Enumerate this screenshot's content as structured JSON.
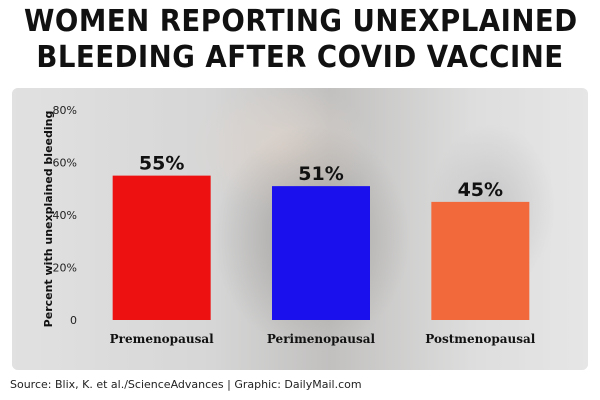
{
  "title": {
    "line1": "WOMEN REPORTING UNEXPLAINED",
    "line2": "BLEEDING AFTER COVID VACCINE"
  },
  "source": "Source: Blix, K. et al./ScienceAdvances  |  Graphic: DailyMail.com",
  "chart_data": {
    "type": "bar",
    "categories": [
      "Premenopausal",
      "Perimenopausal",
      "Postmenopausal"
    ],
    "values": [
      55,
      51,
      45
    ],
    "value_labels": [
      "55%",
      "51%",
      "45%"
    ],
    "colors": [
      "#ee1111",
      "#1a10ee",
      "#f26a3c"
    ],
    "ylabel": "Percent with unexplained bleeding",
    "ylim": [
      0,
      80
    ],
    "yticks": [
      0,
      20,
      40,
      60,
      80
    ],
    "ytick_labels": [
      "0",
      "20%",
      "40%",
      "60%",
      "80%"
    ],
    "grid": false
  }
}
